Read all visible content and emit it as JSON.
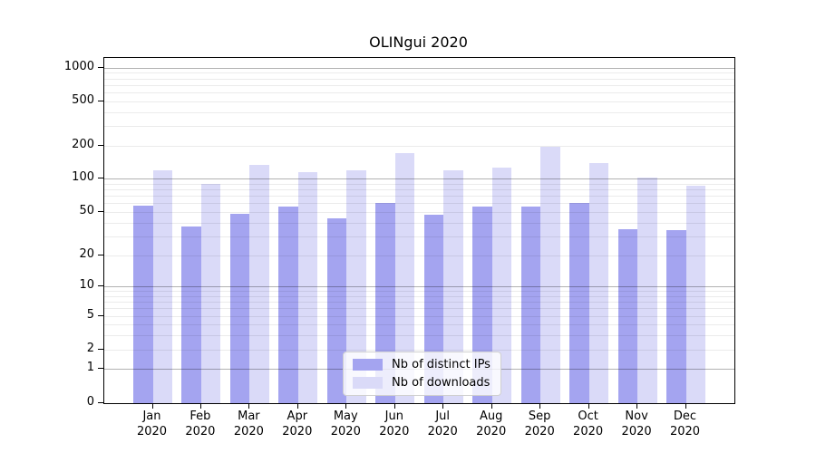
{
  "title": "OLINgui 2020",
  "chart_data": {
    "type": "bar",
    "title": "OLINgui 2020",
    "categories": [
      "Jan",
      "Feb",
      "Mar",
      "Apr",
      "May",
      "Jun",
      "Jul",
      "Aug",
      "Sep",
      "Oct",
      "Nov",
      "Dec"
    ],
    "category_year": "2020",
    "series": [
      {
        "name": "Nb of distinct IPs",
        "color": "#a4a4f0",
        "values": [
          57,
          37,
          48,
          56,
          44,
          61,
          47,
          56,
          56,
          61,
          35,
          34
        ]
      },
      {
        "name": "Nb of downloads",
        "color": "#dadaf8",
        "values": [
          119,
          90,
          133,
          114,
          119,
          170,
          119,
          127,
          194,
          139,
          103,
          86
        ]
      }
    ],
    "y_axis": {
      "scale": "log1p",
      "tick_labels": [
        "1000",
        "500",
        "200",
        "100",
        "50",
        "20",
        "10",
        "5",
        "2",
        "1",
        "0"
      ],
      "tick_values": [
        1000,
        500,
        200,
        100,
        50,
        20,
        10,
        5,
        2,
        1,
        0
      ],
      "top_value": 1200
    },
    "x_axis": {
      "label_line2": "2020"
    },
    "grid": {
      "major_values": [
        1,
        10,
        100,
        1000
      ],
      "minor_values": [
        2,
        3,
        4,
        5,
        6,
        7,
        8,
        9,
        20,
        30,
        40,
        50,
        60,
        70,
        80,
        90,
        200,
        300,
        400,
        500,
        600,
        700,
        800,
        900
      ]
    },
    "legend": {
      "position": "lower-center",
      "entries": [
        "Nb of distinct IPs",
        "Nb of downloads"
      ]
    }
  },
  "colors": {
    "bar_ips": "#a4a4f0",
    "bar_downloads": "#dadaf8",
    "grid_minor": "rgba(0,0,0,0.08)",
    "grid_major": "rgba(0,0,0,0.30)",
    "spine": "#000000",
    "background": "#ffffff"
  }
}
